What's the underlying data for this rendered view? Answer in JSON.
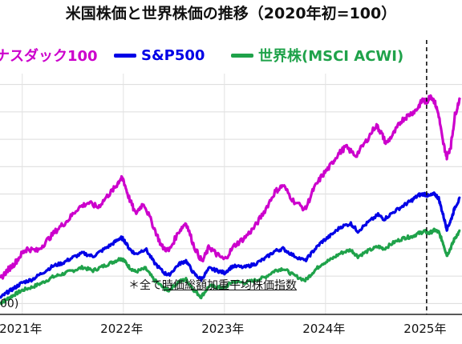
{
  "chart_data": {
    "type": "line",
    "title": "米国株価と世界株価の推移（2020年初=100）",
    "note_prefix": "＊全て",
    "note_underlined": "時価総額加重平均株価指数",
    "unit_label": "00)",
    "x_ticks": [
      "2021年",
      "2022年",
      "2023年",
      "2024年",
      "2025年"
    ],
    "xlim": [
      2020.78,
      2025.35
    ],
    "ylim": [
      110,
      330
    ],
    "grid": true,
    "legend_position": "top",
    "vline": 2025.0,
    "series": [
      {
        "name": "ナスダック100",
        "color": "#cc00cc",
        "points": [
          [
            2020.78,
            142
          ],
          [
            2020.85,
            150
          ],
          [
            2020.92,
            156
          ],
          [
            2021.0,
            166
          ],
          [
            2021.05,
            170
          ],
          [
            2021.15,
            168
          ],
          [
            2021.25,
            178
          ],
          [
            2021.35,
            188
          ],
          [
            2021.45,
            196
          ],
          [
            2021.55,
            207
          ],
          [
            2021.65,
            212
          ],
          [
            2021.75,
            208
          ],
          [
            2021.85,
            219
          ],
          [
            2021.92,
            226
          ],
          [
            2021.97,
            234
          ],
          [
            2022.0,
            233
          ],
          [
            2022.05,
            218
          ],
          [
            2022.12,
            202
          ],
          [
            2022.2,
            212
          ],
          [
            2022.3,
            190
          ],
          [
            2022.38,
            172
          ],
          [
            2022.45,
            168
          ],
          [
            2022.55,
            186
          ],
          [
            2022.62,
            194
          ],
          [
            2022.7,
            172
          ],
          [
            2022.78,
            158
          ],
          [
            2022.85,
            172
          ],
          [
            2022.92,
            165
          ],
          [
            2023.0,
            160
          ],
          [
            2023.1,
            173
          ],
          [
            2023.2,
            180
          ],
          [
            2023.3,
            190
          ],
          [
            2023.4,
            205
          ],
          [
            2023.5,
            222
          ],
          [
            2023.58,
            228
          ],
          [
            2023.68,
            214
          ],
          [
            2023.8,
            206
          ],
          [
            2023.88,
            224
          ],
          [
            2023.96,
            236
          ],
          [
            2024.05,
            246
          ],
          [
            2024.12,
            256
          ],
          [
            2024.2,
            263
          ],
          [
            2024.3,
            255
          ],
          [
            2024.4,
            268
          ],
          [
            2024.5,
            283
          ],
          [
            2024.55,
            276
          ],
          [
            2024.6,
            266
          ],
          [
            2024.68,
            276
          ],
          [
            2024.75,
            287
          ],
          [
            2024.82,
            292
          ],
          [
            2024.9,
            297
          ],
          [
            2024.96,
            306
          ],
          [
            2025.0,
            304
          ],
          [
            2025.04,
            310
          ],
          [
            2025.08,
            304
          ],
          [
            2025.12,
            292
          ],
          [
            2025.16,
            268
          ],
          [
            2025.2,
            254
          ],
          [
            2025.24,
            264
          ],
          [
            2025.28,
            292
          ],
          [
            2025.33,
            308
          ]
        ]
      },
      {
        "name": "S&P500",
        "color": "#0000e6",
        "points": [
          [
            2020.78,
            125
          ],
          [
            2020.85,
            130
          ],
          [
            2020.92,
            134
          ],
          [
            2021.0,
            139
          ],
          [
            2021.1,
            142
          ],
          [
            2021.2,
            148
          ],
          [
            2021.3,
            154
          ],
          [
            2021.4,
            157
          ],
          [
            2021.5,
            162
          ],
          [
            2021.6,
            166
          ],
          [
            2021.7,
            163
          ],
          [
            2021.8,
            169
          ],
          [
            2021.9,
            175
          ],
          [
            2021.97,
            180
          ],
          [
            2022.0,
            179
          ],
          [
            2022.06,
            170
          ],
          [
            2022.12,
            165
          ],
          [
            2022.22,
            170
          ],
          [
            2022.3,
            158
          ],
          [
            2022.4,
            148
          ],
          [
            2022.45,
            146
          ],
          [
            2022.55,
            156
          ],
          [
            2022.62,
            159
          ],
          [
            2022.7,
            147
          ],
          [
            2022.77,
            142
          ],
          [
            2022.85,
            152
          ],
          [
            2022.93,
            150
          ],
          [
            2023.0,
            148
          ],
          [
            2023.08,
            154
          ],
          [
            2023.2,
            153
          ],
          [
            2023.3,
            156
          ],
          [
            2023.4,
            161
          ],
          [
            2023.5,
            168
          ],
          [
            2023.58,
            170
          ],
          [
            2023.68,
            164
          ],
          [
            2023.8,
            159
          ],
          [
            2023.88,
            168
          ],
          [
            2023.96,
            176
          ],
          [
            2024.05,
            182
          ],
          [
            2024.15,
            190
          ],
          [
            2024.25,
            193
          ],
          [
            2024.32,
            186
          ],
          [
            2024.42,
            194
          ],
          [
            2024.52,
            201
          ],
          [
            2024.58,
            197
          ],
          [
            2024.68,
            204
          ],
          [
            2024.78,
            210
          ],
          [
            2024.85,
            214
          ],
          [
            2024.92,
            219
          ],
          [
            2024.98,
            220
          ],
          [
            2025.02,
            218
          ],
          [
            2025.08,
            220
          ],
          [
            2025.12,
            216
          ],
          [
            2025.16,
            202
          ],
          [
            2025.2,
            188
          ],
          [
            2025.24,
            196
          ],
          [
            2025.28,
            208
          ],
          [
            2025.33,
            216
          ]
        ]
      },
      {
        "name": "世界株(MSCI ACWI)",
        "color": "#1fa24a",
        "points": [
          [
            2020.78,
            120
          ],
          [
            2020.85,
            124
          ],
          [
            2020.92,
            128
          ],
          [
            2021.0,
            132
          ],
          [
            2021.1,
            135
          ],
          [
            2021.2,
            139
          ],
          [
            2021.3,
            144
          ],
          [
            2021.4,
            147
          ],
          [
            2021.5,
            150
          ],
          [
            2021.6,
            153
          ],
          [
            2021.7,
            150
          ],
          [
            2021.8,
            154
          ],
          [
            2021.9,
            158
          ],
          [
            2021.97,
            161
          ],
          [
            2022.0,
            160
          ],
          [
            2022.06,
            153
          ],
          [
            2022.12,
            149
          ],
          [
            2022.22,
            152
          ],
          [
            2022.3,
            142
          ],
          [
            2022.4,
            134
          ],
          [
            2022.45,
            132
          ],
          [
            2022.55,
            140
          ],
          [
            2022.62,
            142
          ],
          [
            2022.7,
            132
          ],
          [
            2022.77,
            126
          ],
          [
            2022.85,
            136
          ],
          [
            2022.93,
            135
          ],
          [
            2023.0,
            134
          ],
          [
            2023.08,
            140
          ],
          [
            2023.2,
            139
          ],
          [
            2023.3,
            141
          ],
          [
            2023.4,
            144
          ],
          [
            2023.5,
            150
          ],
          [
            2023.58,
            152
          ],
          [
            2023.68,
            146
          ],
          [
            2023.8,
            141
          ],
          [
            2023.88,
            149
          ],
          [
            2023.96,
            156
          ],
          [
            2024.05,
            160
          ],
          [
            2024.15,
            166
          ],
          [
            2024.25,
            169
          ],
          [
            2024.32,
            163
          ],
          [
            2024.42,
            168
          ],
          [
            2024.52,
            172
          ],
          [
            2024.58,
            170
          ],
          [
            2024.68,
            176
          ],
          [
            2024.78,
            180
          ],
          [
            2024.85,
            181
          ],
          [
            2024.92,
            184
          ],
          [
            2024.98,
            186
          ],
          [
            2025.02,
            184
          ],
          [
            2025.08,
            187
          ],
          [
            2025.12,
            185
          ],
          [
            2025.16,
            176
          ],
          [
            2025.2,
            164
          ],
          [
            2025.24,
            171
          ],
          [
            2025.28,
            180
          ],
          [
            2025.33,
            186
          ]
        ]
      }
    ]
  }
}
